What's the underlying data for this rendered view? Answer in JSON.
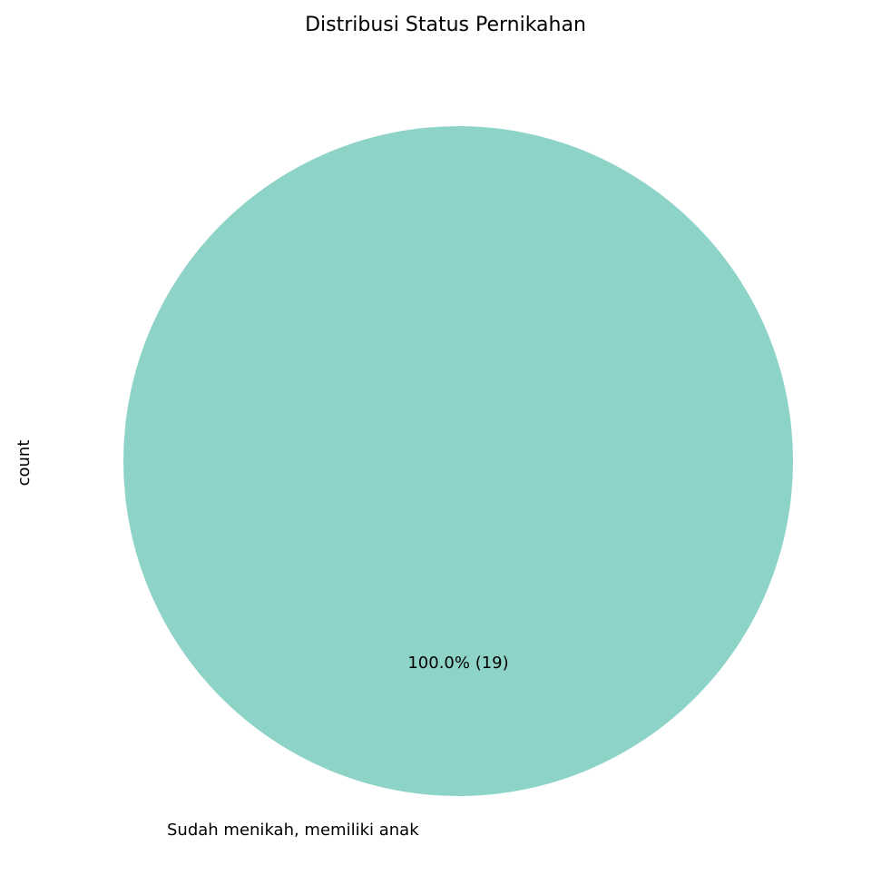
{
  "chart_data": {
    "type": "pie",
    "title": "Distribusi Status Pernikahan",
    "ylabel": "count",
    "categories": [
      "Sudah menikah, memiliki anak"
    ],
    "values": [
      19
    ],
    "autopct_labels": [
      "100.0% (19)"
    ],
    "colors": [
      "#8dd3c7"
    ],
    "legend": false
  }
}
